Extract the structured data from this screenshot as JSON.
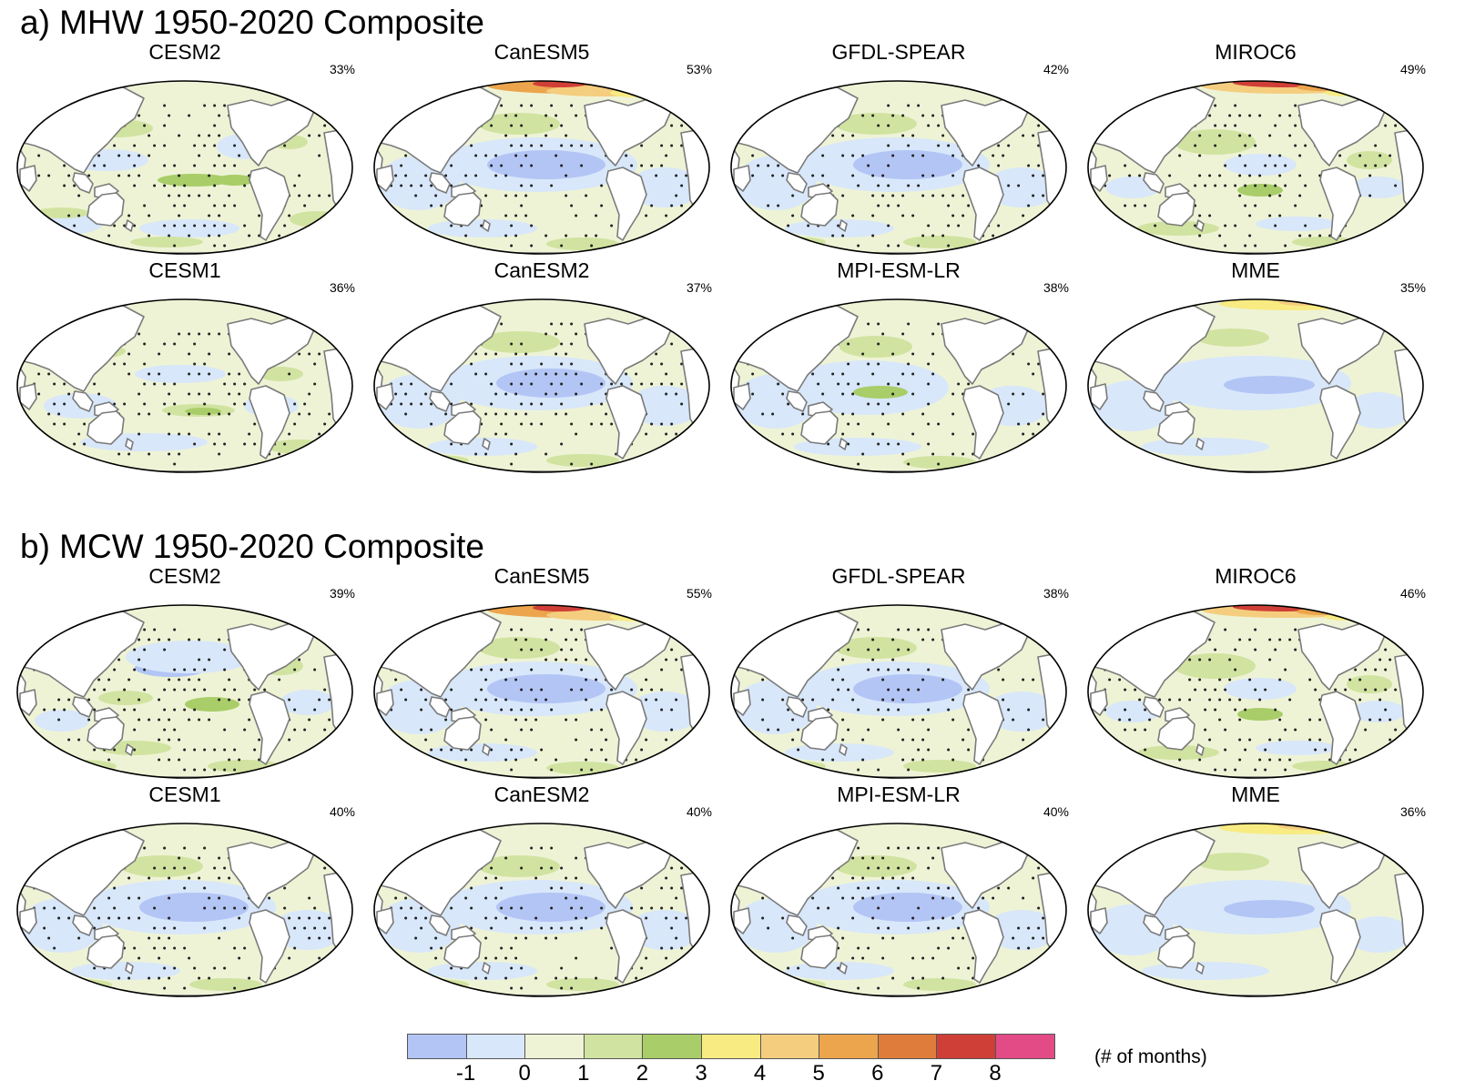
{
  "sections": [
    {
      "title": "a) MHW 1950-2020 Composite",
      "panels": [
        {
          "name": "CESM2",
          "pct": "33%",
          "style": "mhw_mixed"
        },
        {
          "name": "CanESM5",
          "pct": "53%",
          "style": "blue_central_arctic"
        },
        {
          "name": "GFDL-SPEAR",
          "pct": "42%",
          "style": "blue_central"
        },
        {
          "name": "MIROC6",
          "pct": "49%",
          "style": "mhw_mixed_arctic"
        },
        {
          "name": "CESM1",
          "pct": "36%",
          "style": "mhw_mixed_light"
        },
        {
          "name": "CanESM2",
          "pct": "37%",
          "style": "blue_central"
        },
        {
          "name": "MPI-ESM-LR",
          "pct": "38%",
          "style": "green_central"
        },
        {
          "name": "MME",
          "pct": "35%",
          "style": "mme"
        }
      ]
    },
    {
      "title": "b) MCW 1950-2020 Composite",
      "panels": [
        {
          "name": "CESM2",
          "pct": "39%",
          "style": "mcw_mixed"
        },
        {
          "name": "CanESM5",
          "pct": "55%",
          "style": "blue_central_arctic"
        },
        {
          "name": "GFDL-SPEAR",
          "pct": "38%",
          "style": "blue_central"
        },
        {
          "name": "MIROC6",
          "pct": "46%",
          "style": "mhw_mixed_arctic"
        },
        {
          "name": "CESM1",
          "pct": "40%",
          "style": "blue_central"
        },
        {
          "name": "CanESM2",
          "pct": "40%",
          "style": "blue_central"
        },
        {
          "name": "MPI-ESM-LR",
          "pct": "40%",
          "style": "blue_central"
        },
        {
          "name": "MME",
          "pct": "36%",
          "style": "mme"
        }
      ]
    }
  ],
  "colorbar": {
    "colors": [
      "#b3c5f5",
      "#d8e7fa",
      "#eef3d6",
      "#d1e3a0",
      "#a9cd68",
      "#f8eb82",
      "#f5cd7f",
      "#eca54d",
      "#df7c3b",
      "#d03f37",
      "#e24b85"
    ],
    "ticks": [
      "-1",
      "0",
      "1",
      "2",
      "3",
      "4",
      "5",
      "6",
      "7",
      "8"
    ],
    "unit_label": "(# of months)"
  }
}
